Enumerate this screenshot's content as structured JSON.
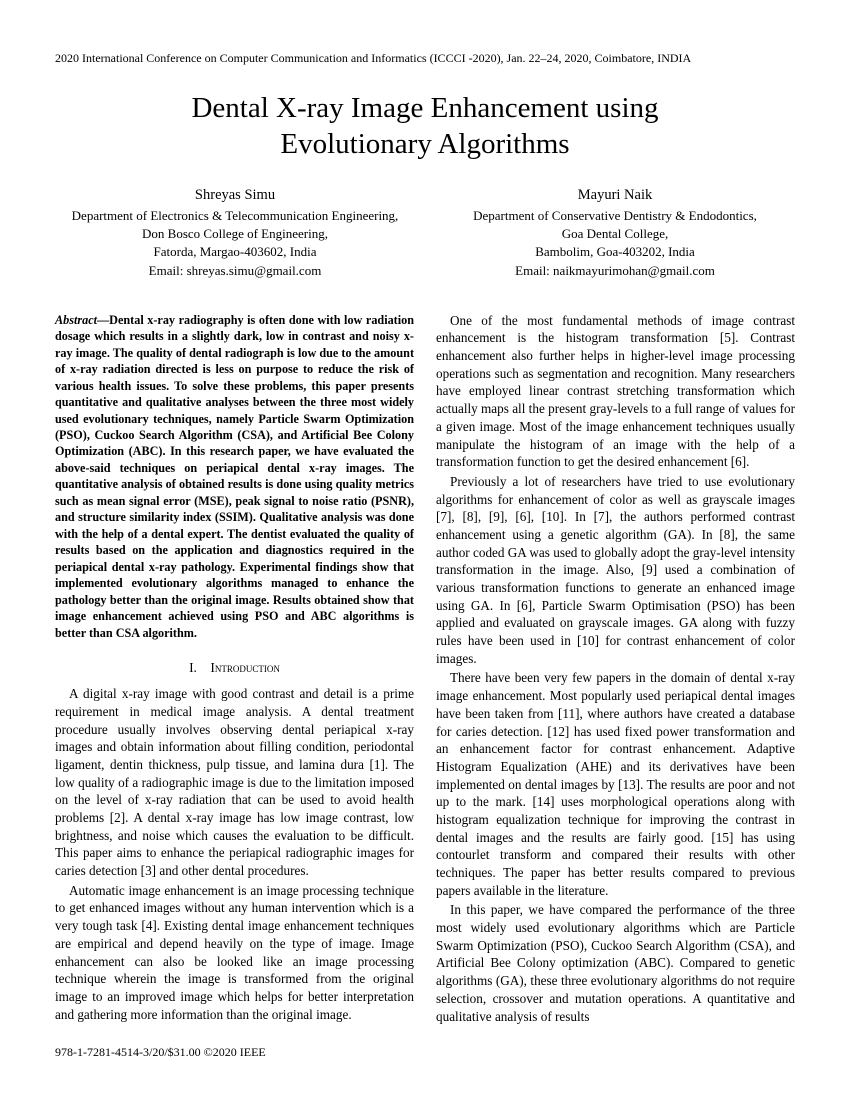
{
  "conference_header": "2020 International Conference on Computer Communication and Informatics (ICCCI -2020), Jan. 22–24, 2020, Coimbatore, INDIA",
  "title_line1": "Dental X-ray Image Enhancement using",
  "title_line2": "Evolutionary Algorithms",
  "authors": [
    {
      "name": "Shreyas Simu",
      "dept": "Department of Electronics & Telecommunication Engineering,",
      "inst": "Don Bosco College of Engineering,",
      "addr": "Fatorda, Margao-403602, India",
      "email": "Email: shreyas.simu@gmail.com"
    },
    {
      "name": "Mayuri Naik",
      "dept": "Department of Conservative Dentistry & Endodontics,",
      "inst": "Goa Dental College,",
      "addr": "Bambolim, Goa-403202, India",
      "email": "Email: naikmayurimohan@gmail.com"
    }
  ],
  "abstract_label": "Abstract",
  "abstract_text": "—Dental x-ray radiography is often done with low radiation dosage which results in a slightly dark, low in contrast and noisy x-ray image. The quality of dental radiograph is low due to the amount of x-ray radiation directed is less on purpose to reduce the risk of various health issues. To solve these problems, this paper presents quantitative and qualitative analyses between the three most widely used evolutionary techniques, namely Particle Swarm Optimization (PSO), Cuckoo Search Algorithm (CSA), and Artificial Bee Colony Optimization (ABC). In this research paper, we have evaluated the above-said techniques on periapical dental x-ray images. The quantitative analysis of obtained results is done using quality metrics such as mean signal error (MSE), peak signal to noise ratio (PSNR), and structure similarity index (SSIM). Qualitative analysis was done with the help of a dental expert. The dentist evaluated the quality of results based on the application and diagnostics required in the periapical dental x-ray pathology. Experimental findings show that implemented evolutionary algorithms managed to enhance the pathology better than the original image. Results obtained show that image enhancement achieved using PSO and ABC algorithms is better than CSA algorithm.",
  "section1": "I. Introduction",
  "col1": {
    "p1": "A digital x-ray image with good contrast and detail is a prime requirement in medical image analysis. A dental treatment procedure usually involves observing dental periapical x-ray images and obtain information about filling condition, periodontal ligament, dentin thickness, pulp tissue, and lamina dura [1]. The low quality of a radiographic image is due to the limitation imposed on the level of x-ray radiation that can be used to avoid health problems [2]. A dental x-ray image has low image contrast, low brightness, and noise which causes the evaluation to be difficult. This paper aims to enhance the periapical radiographic images for caries detection [3] and other dental procedures.",
    "p2": "Automatic image enhancement is an image processing technique to get enhanced images without any human intervention which is a very tough task [4]. Existing dental image enhancement techniques are empirical and depend heavily on the type of image. Image enhancement can also be looked like an image processing technique wherein the image is transformed from the original image to an improved image which helps for better interpretation and gathering more information than the original image."
  },
  "col2": {
    "p1": "One of the most fundamental methods of image contrast enhancement is the histogram transformation [5]. Contrast enhancement also further helps in higher-level image processing operations such as segmentation and recognition. Many researchers have employed linear contrast stretching transformation which actually maps all the present gray-levels to a full range of values for a given image. Most of the image enhancement techniques usually manipulate the histogram of an image with the help of a transformation function to get the desired enhancement [6].",
    "p2": "Previously a lot of researchers have tried to use evolutionary algorithms for enhancement of color as well as grayscale images [7], [8], [9], [6], [10]. In [7], the authors performed contrast enhancement using a genetic algorithm (GA). In [8], the same author coded GA was used to globally adopt the gray-level intensity transformation in the image. Also, [9] used a combination of various transformation functions to generate an enhanced image using GA. In [6], Particle Swarm Optimisation (PSO) has been applied and evaluated on grayscale images. GA along with fuzzy rules have been used in [10] for contrast enhancement of color images.",
    "p3": "There have been very few papers in the domain of dental x-ray image enhancement. Most popularly used periapical dental images have been taken from [11], where authors have created a database for caries detection. [12] has used fixed power transformation and an enhancement factor for contrast enhancement. Adaptive Histogram Equalization (AHE) and its derivatives have been implemented on dental images by [13]. The results are poor and not up to the mark. [14] uses morphological operations along with histogram equalization technique for improving the contrast in dental images and the results are fairly good. [15] has using contourlet transform and compared their results with other techniques. The paper has better results compared to previous papers available in the literature.",
    "p4": "In this paper, we have compared the performance of the three most widely used evolutionary algorithms which are Particle Swarm Optimization (PSO), Cuckoo Search Algorithm (CSA), and Artificial Bee Colony optimization (ABC). Compared to genetic algorithms (GA), these three evolutionary algorithms do not require selection, crossover and mutation operations. A quantitative and qualitative analysis of results"
  },
  "footer": "978-1-7281-4514-3/20/$31.00 ©2020 IEEE"
}
